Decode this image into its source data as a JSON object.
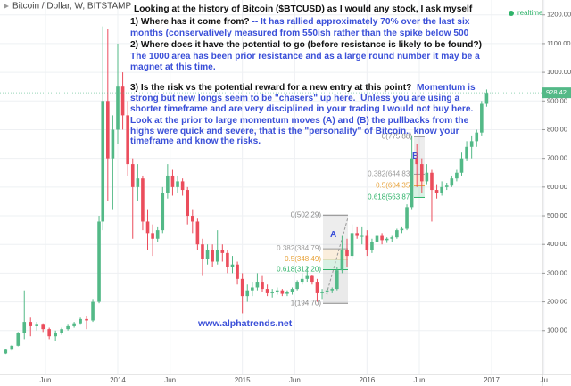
{
  "chart_data": {
    "type": "candlestick",
    "title": "Bitcoin / Dollar, W, BITSTAMP",
    "status": "realtime",
    "up_color": "#53b987",
    "down_color": "#eb4d5c",
    "grid": true,
    "xlim": [
      2013.055,
      2017.408
    ],
    "xticks": [
      {
        "value": 2013.42,
        "label": "Jun"
      },
      {
        "value": 2014,
        "label": "2014"
      },
      {
        "value": 2014.42,
        "label": "Jun"
      },
      {
        "value": 2015,
        "label": "2015"
      },
      {
        "value": 2015.42,
        "label": "Jun"
      },
      {
        "value": 2016,
        "label": "2016"
      },
      {
        "value": 2016.42,
        "label": "Jun"
      },
      {
        "value": 2017,
        "label": "2017"
      },
      {
        "value": 2017.42,
        "label": "Ju"
      }
    ],
    "ylim": [
      -53,
      1252
    ],
    "yticks": [
      {
        "value": 100,
        "label": "100.00"
      },
      {
        "value": 200,
        "label": "200.00"
      },
      {
        "value": 300,
        "label": "300.00"
      },
      {
        "value": 400,
        "label": "400.00"
      },
      {
        "value": 500,
        "label": "500.00"
      },
      {
        "value": 600,
        "label": "600.00"
      },
      {
        "value": 700,
        "label": "700.00"
      },
      {
        "value": 800,
        "label": "800.00"
      },
      {
        "value": 900,
        "label": "900.00"
      },
      {
        "value": 1000,
        "label": "1000.00"
      },
      {
        "value": 1100,
        "label": "1100.00"
      },
      {
        "value": 1200,
        "label": "1200.00"
      }
    ],
    "last_price": 928.42,
    "candles": {
      "x": [
        2013.1,
        2013.15,
        2013.2,
        2013.25,
        2013.3,
        2013.35,
        2013.4,
        2013.45,
        2013.5,
        2013.55,
        2013.6,
        2013.65,
        2013.7,
        2013.75,
        2013.8,
        2013.85,
        2013.88,
        2013.92,
        2013.96,
        2014.0,
        2014.04,
        2014.08,
        2014.12,
        2014.16,
        2014.2,
        2014.24,
        2014.28,
        2014.32,
        2014.36,
        2014.4,
        2014.44,
        2014.48,
        2014.52,
        2014.56,
        2014.6,
        2014.64,
        2014.68,
        2014.72,
        2014.76,
        2014.8,
        2014.84,
        2014.88,
        2014.92,
        2014.96,
        2015.0,
        2015.04,
        2015.08,
        2015.12,
        2015.16,
        2015.2,
        2015.24,
        2015.28,
        2015.32,
        2015.36,
        2015.4,
        2015.44,
        2015.48,
        2015.52,
        2015.56,
        2015.6,
        2015.64,
        2015.68,
        2015.72,
        2015.76,
        2015.8,
        2015.84,
        2015.88,
        2015.92,
        2015.96,
        2016.0,
        2016.04,
        2016.08,
        2016.12,
        2016.16,
        2016.2,
        2016.24,
        2016.28,
        2016.32,
        2016.36,
        2016.4,
        2016.44,
        2016.48,
        2016.52,
        2016.56,
        2016.6,
        2016.64,
        2016.68,
        2016.72,
        2016.76,
        2016.8,
        2016.84,
        2016.88,
        2016.92,
        2016.96
      ],
      "open": [
        20,
        33,
        47,
        90,
        130,
        115,
        120,
        105,
        80,
        90,
        105,
        115,
        125,
        140,
        135,
        200,
        480,
        900,
        700,
        800,
        950,
        850,
        680,
        600,
        630,
        480,
        440,
        420,
        450,
        580,
        640,
        600,
        620,
        590,
        500,
        480,
        400,
        350,
        380,
        340,
        380,
        370,
        320,
        330,
        280,
        220,
        240,
        250,
        270,
        245,
        230,
        235,
        240,
        228,
        235,
        245,
        270,
        280,
        290,
        270,
        230,
        235,
        240,
        245,
        310,
        380,
        360,
        440,
        430,
        430,
        380,
        410,
        430,
        415,
        420,
        425,
        450,
        455,
        530,
        700,
        680,
        620,
        650,
        590,
        580,
        600,
        605,
        630,
        650,
        700,
        740,
        760,
        790,
        890
      ],
      "high": [
        35,
        50,
        95,
        240,
        145,
        130,
        125,
        110,
        100,
        110,
        120,
        130,
        145,
        150,
        210,
        500,
        1160,
        1150,
        850,
        1100,
        1000,
        900,
        700,
        680,
        640,
        520,
        470,
        460,
        600,
        680,
        660,
        640,
        630,
        600,
        520,
        490,
        420,
        400,
        400,
        450,
        400,
        380,
        360,
        340,
        300,
        260,
        270,
        300,
        290,
        260,
        245,
        250,
        245,
        240,
        250,
        275,
        300,
        320,
        295,
        280,
        245,
        250,
        250,
        320,
        430,
        420,
        470,
        460,
        460,
        450,
        420,
        440,
        440,
        425,
        430,
        455,
        460,
        540,
        780,
        750,
        700,
        680,
        660,
        610,
        620,
        615,
        640,
        660,
        720,
        760,
        780,
        800,
        900,
        940
      ],
      "low": [
        18,
        30,
        45,
        70,
        80,
        100,
        95,
        70,
        65,
        85,
        100,
        110,
        120,
        105,
        130,
        195,
        450,
        550,
        520,
        750,
        800,
        640,
        420,
        550,
        450,
        380,
        360,
        410,
        440,
        560,
        570,
        580,
        570,
        470,
        440,
        380,
        290,
        330,
        320,
        330,
        340,
        300,
        300,
        260,
        160,
        200,
        220,
        240,
        235,
        220,
        215,
        225,
        220,
        220,
        225,
        240,
        260,
        270,
        260,
        200,
        210,
        225,
        230,
        240,
        300,
        320,
        350,
        420,
        400,
        360,
        370,
        400,
        400,
        405,
        410,
        420,
        440,
        450,
        520,
        600,
        580,
        610,
        480,
        560,
        570,
        590,
        600,
        620,
        640,
        690,
        700,
        740,
        780,
        880
      ],
      "close": [
        33,
        47,
        90,
        130,
        115,
        120,
        105,
        80,
        90,
        105,
        115,
        125,
        140,
        135,
        200,
        480,
        900,
        700,
        800,
        950,
        850,
        680,
        600,
        630,
        480,
        440,
        420,
        450,
        580,
        640,
        600,
        620,
        590,
        500,
        480,
        400,
        350,
        380,
        340,
        380,
        370,
        320,
        330,
        280,
        220,
        240,
        250,
        270,
        245,
        230,
        235,
        240,
        228,
        235,
        245,
        270,
        280,
        290,
        270,
        230,
        235,
        240,
        245,
        310,
        380,
        360,
        440,
        430,
        430,
        380,
        410,
        430,
        415,
        420,
        425,
        450,
        455,
        530,
        700,
        680,
        620,
        650,
        590,
        580,
        600,
        605,
        630,
        650,
        700,
        740,
        760,
        790,
        890,
        928
      ]
    },
    "fib_a": {
      "label": "A",
      "levels": [
        {
          "value": 502.29,
          "label": "0(502.29)",
          "color": "#888888"
        },
        {
          "value": 384.79,
          "label": "0.382(384.79)",
          "color": "#9a9a9a"
        },
        {
          "value": 348.49,
          "label": "0.5(348.49)",
          "color": "#e8a33b"
        },
        {
          "value": 312.2,
          "label": "0.618(312.20)",
          "color": "#2fb36a"
        },
        {
          "value": 194.7,
          "label": "1(194.70)",
          "color": "#888888"
        }
      ]
    },
    "fib_b": {
      "label": "B",
      "levels": [
        {
          "value": 775.88,
          "label": "0(775.88)",
          "color": "#888888"
        },
        {
          "value": 644.83,
          "label": "0.382(644.83)",
          "color": "#9a9a9a"
        },
        {
          "value": 604.35,
          "label": "0.5(604.35)",
          "color": "#e8a33b"
        },
        {
          "value": 563.87,
          "label": "0.618(563.87)",
          "color": "#2fb36a"
        }
      ]
    },
    "note_lines": [
      [
        {
          "text": "Looking at the history of Bitcoin ($BTCUSD) as I would any stock, I ask myself",
          "color": "#111111"
        }
      ],
      [
        {
          "text": "1) Where has it come from? ",
          "color": "#111111"
        },
        {
          "text": "-- It has rallied approximately 70% over the last six",
          "color": "#3a4fd8"
        }
      ],
      [
        {
          "text": "months (conservatively measured from 550ish rather than the spike below 500",
          "color": "#3a4fd8"
        }
      ],
      [
        {
          "text": "2) Where does it have the potential to go (before resistance is likely to be found?)",
          "color": "#111111"
        }
      ],
      [
        {
          "text": "The 1000 area has been prior resistance and as a large round number it may be a",
          "color": "#3a4fd8"
        }
      ],
      [
        {
          "text": "magnet at this time.",
          "color": "#3a4fd8"
        }
      ],
      [
        {
          "text": "3) Is the risk vs the potential reward for a new entry at this point?  ",
          "color": "#111111"
        },
        {
          "text": "Momentum is",
          "color": "#3a4fd8"
        }
      ],
      [
        {
          "text": "strong but new longs seem to be \"chasers\" up here.  Unless you are using a",
          "color": "#3a4fd8"
        }
      ],
      [
        {
          "text": "shorter timeframe and are very disciplined in your trading I would not buy here.",
          "color": "#3a4fd8"
        }
      ],
      [
        {
          "text": "Look at the prior to large momentum moves (A) and (B) the pullbacks from the",
          "color": "#3a4fd8"
        }
      ],
      [
        {
          "text": "highs were quick and severe, that is the \"personality\" of Bitcoin.. know your",
          "color": "#3a4fd8"
        }
      ],
      [
        {
          "text": "timeframe and know the risks.",
          "color": "#3a4fd8"
        }
      ]
    ],
    "website": "www.alphatrends.net"
  }
}
